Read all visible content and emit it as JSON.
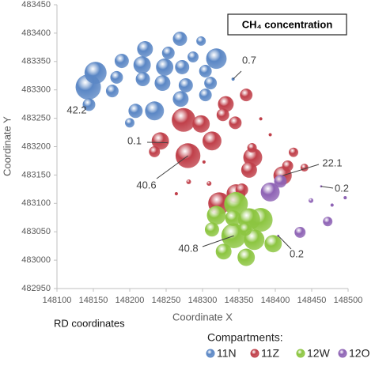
{
  "chart_data": {
    "type": "bubble",
    "title": "CH₄ concentration",
    "subtitle": "RD coordinates",
    "x_label": "Coordinate X",
    "y_label": "Coordinate Y",
    "legend_title": "Compartments:",
    "legend": "bottom",
    "xlim": [
      148100,
      148500
    ],
    "xticks": [
      148100,
      148150,
      148200,
      148250,
      148300,
      148350,
      148400,
      148450,
      148500
    ],
    "ylim": [
      482950,
      483450
    ],
    "yticks": [
      482950,
      483000,
      483050,
      483100,
      483150,
      483200,
      483250,
      483300,
      483350,
      483400,
      483450
    ],
    "grid": false,
    "series": [
      {
        "name": "11N",
        "color": "#5b87c5",
        "x": [
          148143,
          148153,
          148189,
          148182,
          148176,
          148144,
          148200,
          148221,
          148217,
          148218,
          148208,
          148234,
          148248,
          148245,
          148253,
          148269,
          148272,
          148277,
          148270,
          148287,
          148298,
          148304,
          148311,
          148304,
          148319,
          148342
        ],
        "values": [
          483305,
          483330,
          483351,
          483322,
          483298,
          483274,
          483242,
          483372,
          483344,
          483319,
          483263,
          483263,
          483340,
          483312,
          483365,
          483390,
          483340,
          483308,
          483284,
          483358,
          483386,
          483333,
          483312,
          483291,
          483355,
          483319
        ],
        "sizes": [
          42.2,
          32.1,
          13.3,
          10.5,
          10.5,
          10.5,
          5.9,
          16.4,
          19.8,
          13.3,
          13.3,
          23.6,
          19.8,
          16.4,
          10.5,
          13.3,
          13.3,
          13.3,
          16.4,
          8.0,
          5.9,
          10.5,
          10.5,
          10.5,
          27.7,
          0.7
        ]
      },
      {
        "name": "11Z",
        "color": "#c0404a",
        "x": [
          148274,
          148280,
          148298,
          148313,
          148242,
          148234,
          148332,
          148328,
          148345,
          148360,
          148369,
          148364,
          148354,
          148368,
          148410,
          148417,
          148425,
          148440,
          148323,
          148346,
          148252,
          148309,
          148281,
          148380,
          148393,
          148302,
          148264
        ],
        "values": [
          483247,
          483184,
          483240,
          483210,
          483210,
          483191,
          483275,
          483256,
          483242,
          483291,
          483181,
          483159,
          483124,
          483198,
          483149,
          483166,
          483190,
          483163,
          483100,
          483117,
          483207,
          483135,
          483138,
          483249,
          483221,
          483173,
          483117
        ],
        "sizes": [
          36.9,
          40.6,
          19.8,
          23.6,
          19.8,
          8.0,
          16.4,
          10.5,
          10.5,
          10.5,
          23.6,
          16.4,
          10.5,
          5.9,
          22.1,
          8.0,
          5.9,
          4.1,
          32.1,
          23.6,
          0.1,
          1.5,
          1.5,
          0.7,
          0.7,
          0.7,
          0.7
        ]
      },
      {
        "name": "12W",
        "color": "#8cc540",
        "x": [
          148319,
          148346,
          148364,
          148380,
          148343,
          148371,
          148313,
          148329,
          148360,
          148397,
          148359,
          148342
        ],
        "values": [
          483079,
          483099,
          483072,
          483071,
          483043,
          483036,
          483054,
          483015,
          483005,
          483029,
          483054,
          483074
        ],
        "sizes": [
          23.6,
          36.9,
          32.1,
          36.9,
          40.8,
          27.7,
          13.3,
          16.4,
          19.8,
          19.8,
          10.5,
          16.4
        ]
      },
      {
        "name": "12O",
        "color": "#8e63b5",
        "x": [
          148393,
          148407,
          148434,
          148472,
          148449,
          148463,
          148478,
          148496,
          148404
        ],
        "values": [
          483120,
          483139,
          483049,
          483068,
          483105,
          483130,
          483097,
          483110,
          483043
        ],
        "sizes": [
          23.6,
          10.5,
          8.0,
          5.9,
          1.5,
          0.2,
          0.7,
          0.7,
          0.2
        ]
      }
    ]
  }
}
